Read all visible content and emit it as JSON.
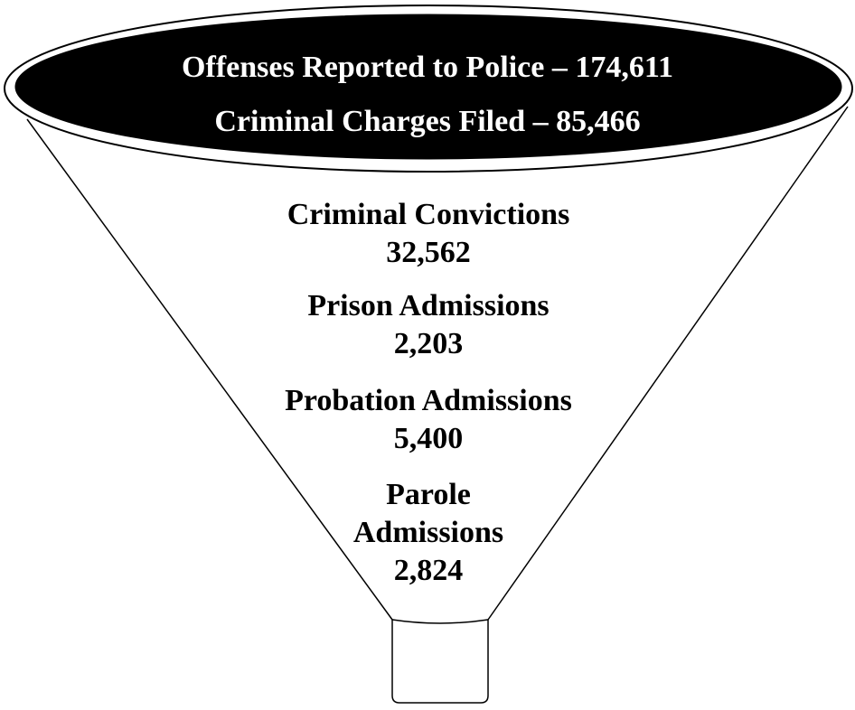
{
  "header": {
    "lines": [
      "Offenses Reported to Police – 174,611",
      "Criminal Charges Filed – 85,466"
    ]
  },
  "stages": [
    {
      "label": "Criminal Convictions",
      "value": "32,562"
    },
    {
      "label": "Prison Admissions",
      "value": "2,203"
    },
    {
      "label": "Probation Admissions",
      "value": "5,400"
    },
    {
      "label": "Parole Admissions",
      "value": "2,824"
    }
  ]
}
